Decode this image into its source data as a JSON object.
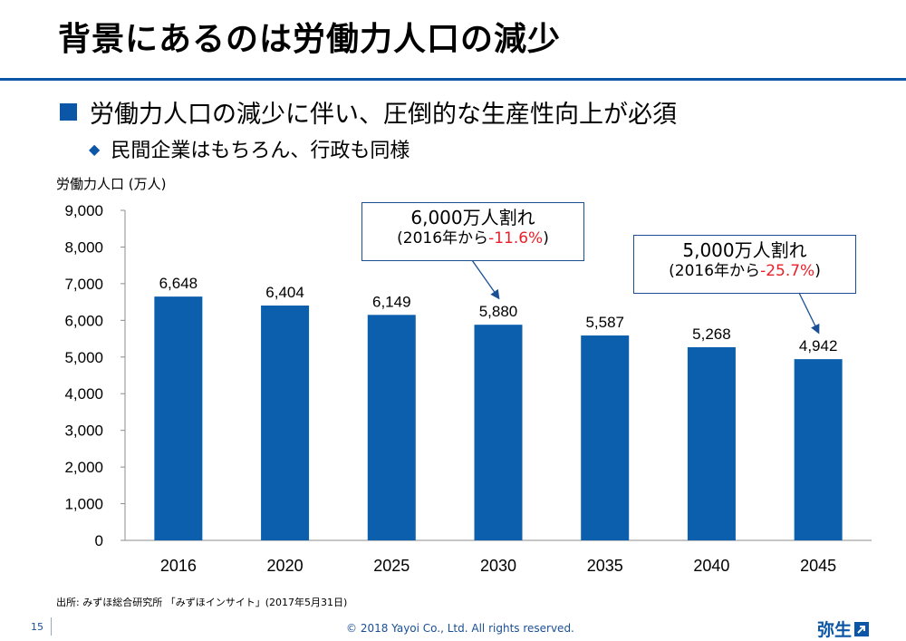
{
  "slide": {
    "title": "背景にあるのは労働力人口の減少",
    "bullet1": "労働力人口の減少に伴い、圧倒的な生産性向上が必須",
    "bullet2": "民間企業はもちろん、行政も同様"
  },
  "chart_data": {
    "type": "bar",
    "ylabel": "労働力人口 (万人)",
    "categories": [
      "2016",
      "2020",
      "2025",
      "2030",
      "2035",
      "2040",
      "2045"
    ],
    "values": [
      6648,
      6404,
      6149,
      5880,
      5587,
      5268,
      4942
    ],
    "value_labels": [
      "6,648",
      "6,404",
      "6,149",
      "5,880",
      "5,587",
      "5,268",
      "4,942"
    ],
    "ylim": [
      0,
      9000
    ],
    "yticks": [
      0,
      1000,
      2000,
      3000,
      4000,
      5000,
      6000,
      7000,
      8000,
      9000
    ],
    "ytick_labels": [
      "0",
      "1,000",
      "2,000",
      "3,000",
      "4,000",
      "5,000",
      "6,000",
      "7,000",
      "8,000",
      "9,000"
    ],
    "bar_color": "#0b5fad",
    "grid": false,
    "annotations": [
      {
        "line1": "6,000万人割れ",
        "line2_prefix": "(2016年から",
        "line2_value": "-11.6%",
        "line2_suffix": ")",
        "points_to": "2030"
      },
      {
        "line1": "5,000万人割れ",
        "line2_prefix": "(2016年から",
        "line2_value": "-25.7%",
        "line2_suffix": ")",
        "points_to": "2045"
      }
    ]
  },
  "footer": {
    "source": "出所: みずほ総合研究所 「みずほインサイト」(2017年5月31日)",
    "page_number": "15",
    "copyright": "© 2018 Yayoi Co., Ltd.  All rights reserved.",
    "logo": "弥生"
  },
  "colors": {
    "accent": "#0b56a6",
    "highlight": "#e8202a"
  }
}
